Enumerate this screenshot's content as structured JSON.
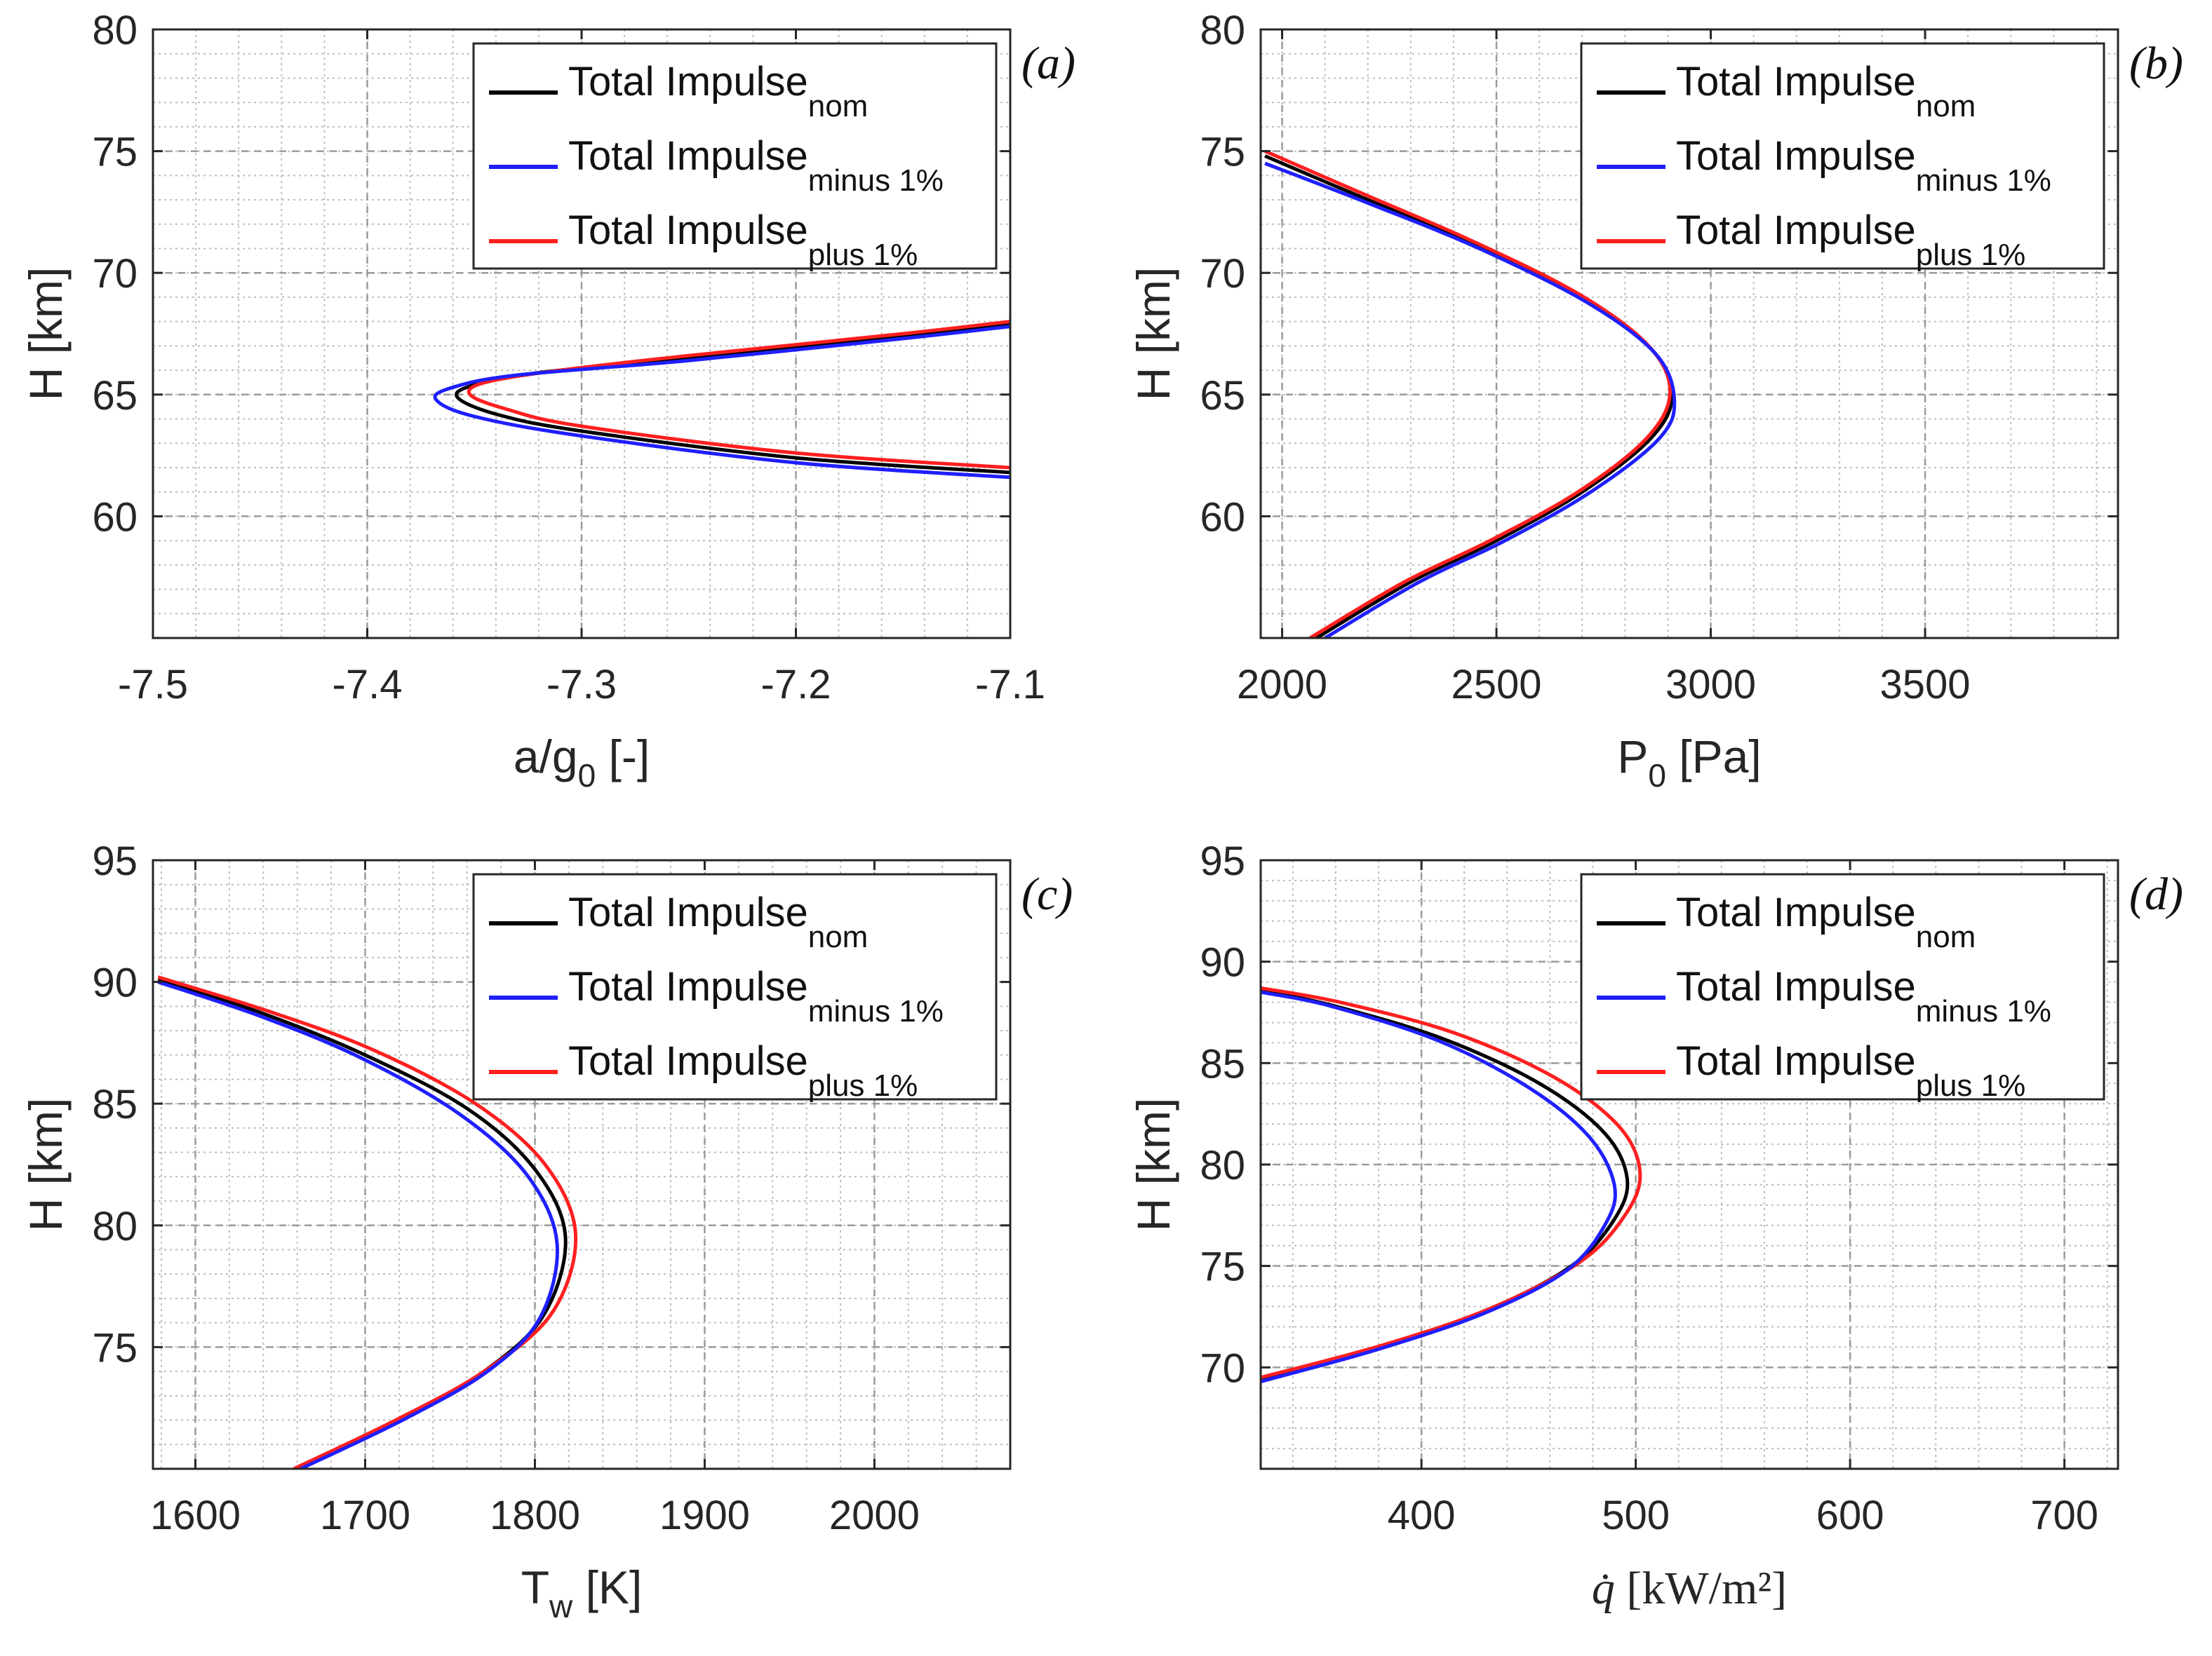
{
  "figure": {
    "legend_entries": [
      {
        "base": "Total Impulse",
        "sub": "nom",
        "color": "#000000"
      },
      {
        "base": "Total Impulse",
        "sub": "minus 1%",
        "color": "#1f1fff"
      },
      {
        "base": "Total Impulse",
        "sub": "plus 1%",
        "color": "#ff1f1f"
      }
    ]
  },
  "chart_data": [
    {
      "id": "a",
      "type": "line",
      "panel_label": "(a)",
      "xlabel": {
        "base": "a/g",
        "sub": "0",
        "tail": " [-]"
      },
      "ylabel": "H [km]",
      "xlim": [
        -7.5,
        -7.1
      ],
      "ylim": [
        55,
        80
      ],
      "xticks": [
        -7.5,
        -7.4,
        -7.3,
        -7.2,
        -7.1
      ],
      "xtick_labels": [
        "-7.5",
        "-7.4",
        "-7.3",
        "-7.2",
        "-7.1"
      ],
      "yticks": [
        60,
        65,
        70,
        75,
        80
      ],
      "ytick_labels": [
        "60",
        "65",
        "70",
        "75",
        "80"
      ],
      "minor_x": 0.02,
      "minor_y": 1,
      "grid": true,
      "legend_position": "top-right",
      "series": [
        {
          "name": "Total Impulse nom",
          "color": "#000000",
          "points": [
            [
              -7.1,
              61.8
            ],
            [
              -7.2,
              62.4
            ],
            [
              -7.3,
              63.5
            ],
            [
              -7.34,
              64.2
            ],
            [
              -7.358,
              64.9
            ],
            [
              -7.35,
              65.4
            ],
            [
              -7.32,
              65.9
            ],
            [
              -7.25,
              66.5
            ],
            [
              -7.15,
              67.4
            ],
            [
              -7.1,
              67.9
            ]
          ]
        },
        {
          "name": "Total Impulse minus 1%",
          "color": "#1f1fff",
          "points": [
            [
              -7.1,
              61.6
            ],
            [
              -7.2,
              62.2
            ],
            [
              -7.3,
              63.3
            ],
            [
              -7.35,
              64.1
            ],
            [
              -7.368,
              64.8
            ],
            [
              -7.36,
              65.3
            ],
            [
              -7.33,
              65.8
            ],
            [
              -7.25,
              66.4
            ],
            [
              -7.15,
              67.3
            ],
            [
              -7.1,
              67.8
            ]
          ]
        },
        {
          "name": "Total Impulse plus 1%",
          "color": "#ff1f1f",
          "points": [
            [
              -7.1,
              62.0
            ],
            [
              -7.2,
              62.6
            ],
            [
              -7.3,
              63.7
            ],
            [
              -7.335,
              64.4
            ],
            [
              -7.352,
              65.0
            ],
            [
              -7.345,
              65.5
            ],
            [
              -7.31,
              66.0
            ],
            [
              -7.25,
              66.6
            ],
            [
              -7.15,
              67.5
            ],
            [
              -7.1,
              68.0
            ]
          ]
        }
      ]
    },
    {
      "id": "b",
      "type": "line",
      "panel_label": "(b)",
      "xlabel": {
        "base": "P",
        "sub": "0",
        "tail": " [Pa]"
      },
      "ylabel": "H [km]",
      "xlim": [
        1950,
        3950
      ],
      "ylim": [
        55,
        80
      ],
      "xticks": [
        2000,
        2500,
        3000,
        3500
      ],
      "xtick_labels": [
        "2000",
        "2500",
        "3000",
        "3500"
      ],
      "yticks": [
        60,
        65,
        70,
        75,
        80
      ],
      "ytick_labels": [
        "60",
        "65",
        "70",
        "75",
        "80"
      ],
      "minor_x": 100,
      "minor_y": 1,
      "grid": true,
      "legend_position": "top-right",
      "series": [
        {
          "name": "Total Impulse nom",
          "color": "#000000",
          "points": [
            [
              2080,
              55
            ],
            [
              2300,
              57.3
            ],
            [
              2500,
              59.0
            ],
            [
              2700,
              61.0
            ],
            [
              2860,
              63.2
            ],
            [
              2910,
              65.0
            ],
            [
              2860,
              66.9
            ],
            [
              2700,
              69.0
            ],
            [
              2450,
              71.2
            ],
            [
              2200,
              73.0
            ],
            [
              1960,
              74.8
            ]
          ]
        },
        {
          "name": "Total Impulse minus 1%",
          "color": "#1f1fff",
          "points": [
            [
              2100,
              55
            ],
            [
              2320,
              57.3
            ],
            [
              2520,
              59.0
            ],
            [
              2720,
              61.0
            ],
            [
              2880,
              63.2
            ],
            [
              2915,
              64.8
            ],
            [
              2870,
              66.7
            ],
            [
              2710,
              68.8
            ],
            [
              2460,
              71.0
            ],
            [
              2210,
              72.8
            ],
            [
              1960,
              74.5
            ]
          ]
        },
        {
          "name": "Total Impulse plus 1%",
          "color": "#ff1f1f",
          "points": [
            [
              2065,
              55
            ],
            [
              2285,
              57.3
            ],
            [
              2485,
              59.0
            ],
            [
              2690,
              61.0
            ],
            [
              2850,
              63.2
            ],
            [
              2905,
              65.1
            ],
            [
              2855,
              67.0
            ],
            [
              2695,
              69.1
            ],
            [
              2445,
              71.3
            ],
            [
              2195,
              73.2
            ],
            [
              1960,
              75.0
            ]
          ]
        }
      ]
    },
    {
      "id": "c",
      "type": "line",
      "panel_label": "(c)",
      "xlabel": {
        "base": "T",
        "sub": "w",
        "tail": " [K]"
      },
      "ylabel": "H [km]",
      "xlim": [
        1575,
        2080
      ],
      "ylim": [
        70,
        95
      ],
      "xticks": [
        1600,
        1700,
        1800,
        1900,
        2000
      ],
      "xtick_labels": [
        "1600",
        "1700",
        "1800",
        "1900",
        "2000"
      ],
      "yticks": [
        75,
        80,
        85,
        90,
        95
      ],
      "ytick_labels": [
        "75",
        "80",
        "85",
        "90",
        "95"
      ],
      "minor_x": 20,
      "minor_y": 1,
      "grid": true,
      "legend_position": "top-right",
      "series": [
        {
          "name": "Total Impulse nom",
          "color": "#000000",
          "points": [
            [
              1660,
              70
            ],
            [
              1720,
              72.0
            ],
            [
              1770,
              74.0
            ],
            [
              1805,
              76.3
            ],
            [
              1818,
              79.5
            ],
            [
              1800,
              82.3
            ],
            [
              1760,
              84.8
            ],
            [
              1700,
              87.0
            ],
            [
              1640,
              88.7
            ],
            [
              1578,
              90.1
            ]
          ]
        },
        {
          "name": "Total Impulse minus 1%",
          "color": "#1f1fff",
          "points": [
            [
              1662,
              70
            ],
            [
              1722,
              72.0
            ],
            [
              1772,
              74.0
            ],
            [
              1803,
              76.2
            ],
            [
              1813,
              79.3
            ],
            [
              1795,
              82.1
            ],
            [
              1755,
              84.6
            ],
            [
              1697,
              86.9
            ],
            [
              1638,
              88.6
            ],
            [
              1578,
              90.0
            ]
          ]
        },
        {
          "name": "Total Impulse plus 1%",
          "color": "#ff1f1f",
          "points": [
            [
              1658,
              70
            ],
            [
              1718,
              72.0
            ],
            [
              1770,
              74.0
            ],
            [
              1810,
              76.4
            ],
            [
              1824,
              79.6
            ],
            [
              1806,
              82.5
            ],
            [
              1765,
              85.0
            ],
            [
              1705,
              87.2
            ],
            [
              1643,
              88.8
            ],
            [
              1578,
              90.2
            ]
          ]
        }
      ]
    },
    {
      "id": "d",
      "type": "line",
      "panel_label": "(d)",
      "xlabel": {
        "base": "q̇",
        "tail": " [kW/m²]"
      },
      "ylabel": "H [km]",
      "xlim": [
        325,
        725
      ],
      "ylim": [
        65,
        95
      ],
      "xticks": [
        400,
        500,
        600,
        700
      ],
      "xtick_labels": [
        "400",
        "500",
        "600",
        "700"
      ],
      "yticks": [
        70,
        75,
        80,
        85,
        90,
        95
      ],
      "ytick_labels": [
        "70",
        "75",
        "80",
        "85",
        "90",
        "95"
      ],
      "minor_x": 20,
      "minor_y": 1,
      "grid": true,
      "legend_position": "top-right",
      "series": [
        {
          "name": "Total Impulse nom",
          "color": "#000000",
          "points": [
            [
              325,
              69.4
            ],
            [
              380,
              71.0
            ],
            [
              430,
              72.8
            ],
            [
              470,
              75.0
            ],
            [
              490,
              77.3
            ],
            [
              496,
              79.3
            ],
            [
              485,
              81.6
            ],
            [
              455,
              84.0
            ],
            [
              410,
              86.2
            ],
            [
              360,
              87.8
            ],
            [
              325,
              88.6
            ]
          ]
        },
        {
          "name": "Total Impulse minus 1%",
          "color": "#1f1fff",
          "points": [
            [
              325,
              69.3
            ],
            [
              380,
              70.9
            ],
            [
              430,
              72.7
            ],
            [
              468,
              74.8
            ],
            [
              486,
              77.1
            ],
            [
              490,
              79.0
            ],
            [
              478,
              81.4
            ],
            [
              450,
              83.8
            ],
            [
              408,
              86.1
            ],
            [
              358,
              87.8
            ],
            [
              325,
              88.5
            ]
          ]
        },
        {
          "name": "Total Impulse plus 1%",
          "color": "#ff1f1f",
          "points": [
            [
              325,
              69.5
            ],
            [
              382,
              71.1
            ],
            [
              432,
              72.9
            ],
            [
              474,
              75.2
            ],
            [
              495,
              77.5
            ],
            [
              502,
              79.6
            ],
            [
              492,
              81.9
            ],
            [
              462,
              84.3
            ],
            [
              415,
              86.5
            ],
            [
              362,
              88.0
            ],
            [
              325,
              88.7
            ]
          ]
        }
      ]
    }
  ]
}
